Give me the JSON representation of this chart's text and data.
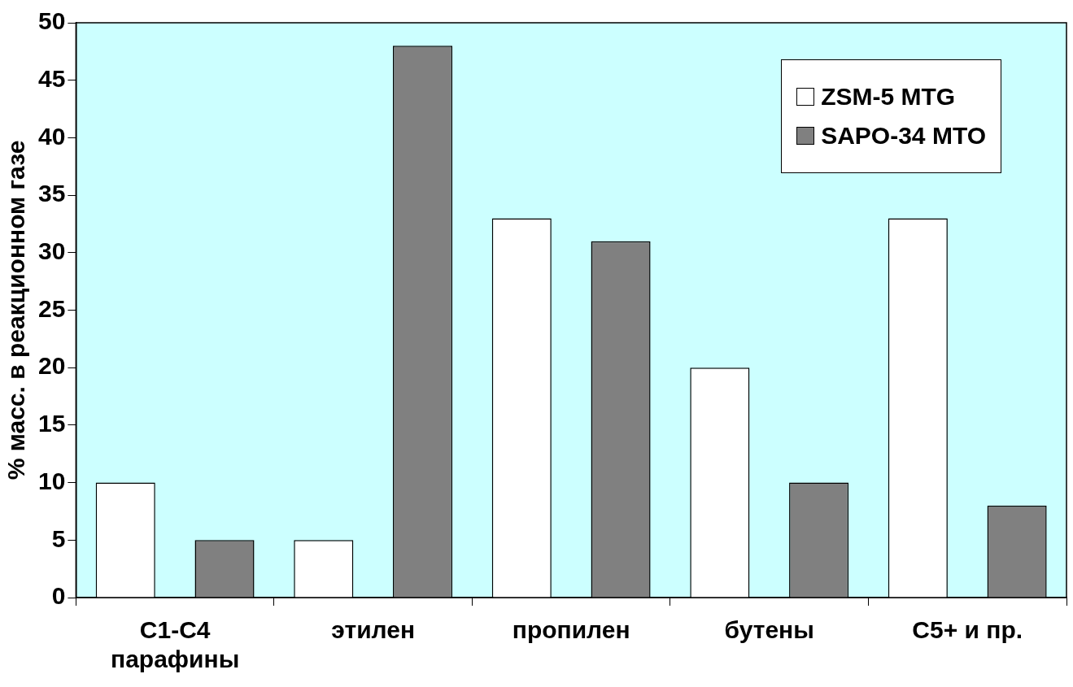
{
  "chart_data": {
    "type": "bar",
    "ylabel": "% масс. в реакционном газе",
    "categories": [
      "C1-C4\nпарафины",
      "этилен",
      "пропилен",
      "бутены",
      "C5+ и пр."
    ],
    "series": [
      {
        "name": "ZSM-5 MTG",
        "color": "#ffffff",
        "values": [
          10,
          5,
          33,
          20,
          33
        ]
      },
      {
        "name": "SAPO-34 MTO",
        "color": "#808080",
        "values": [
          5,
          48,
          31,
          10,
          8
        ]
      }
    ],
    "ylim": [
      0,
      50
    ],
    "yticks": [
      0,
      5,
      10,
      15,
      20,
      25,
      30,
      35,
      40,
      45,
      50
    ],
    "grid": false,
    "legend": "top right"
  }
}
